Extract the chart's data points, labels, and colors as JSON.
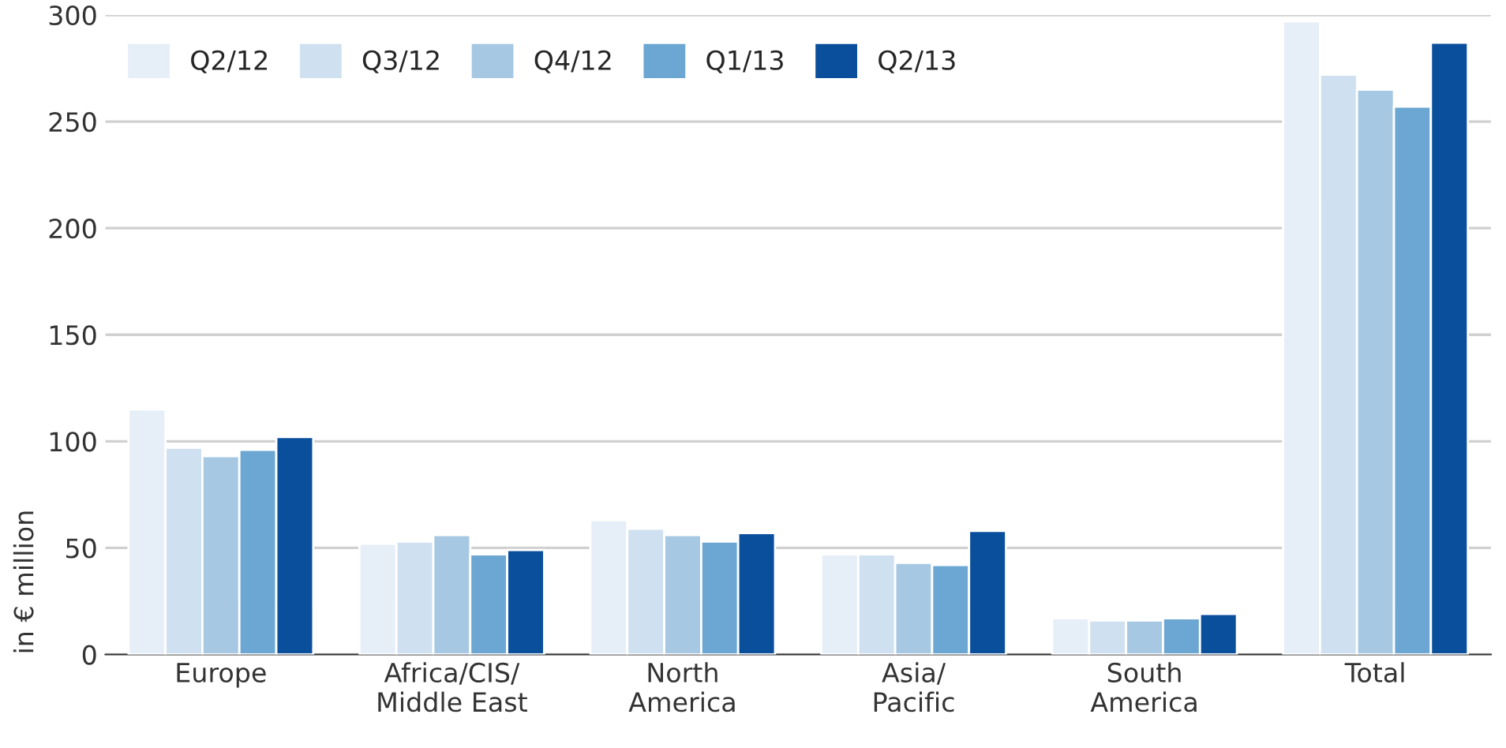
{
  "chart_data": {
    "type": "bar",
    "ylabel": "in € million",
    "categories": [
      "Europe",
      "Africa/CIS/\nMiddle East",
      "North\nAmerica",
      "Asia/\nPacific",
      "South\nAmerica",
      "Total"
    ],
    "series": [
      {
        "name": "Q2/12",
        "color": "#e6eef7",
        "values": [
          115,
          52,
          63,
          47,
          17,
          297
        ]
      },
      {
        "name": "Q3/12",
        "color": "#cfe0f0",
        "values": [
          97,
          53,
          59,
          47,
          16,
          272
        ]
      },
      {
        "name": "Q4/12",
        "color": "#a6c8e3",
        "values": [
          93,
          56,
          56,
          43,
          16,
          265
        ]
      },
      {
        "name": "Q1/13",
        "color": "#6ba7d2",
        "values": [
          96,
          47,
          53,
          42,
          17,
          257
        ]
      },
      {
        "name": "Q2/13",
        "color": "#0a4f9c",
        "values": [
          102,
          49,
          57,
          58,
          19,
          287
        ]
      }
    ],
    "ylim": [
      0,
      300
    ],
    "yticks": [
      0,
      50,
      100,
      150,
      200,
      250,
      300
    ],
    "grid": "y",
    "legend": "top left"
  }
}
